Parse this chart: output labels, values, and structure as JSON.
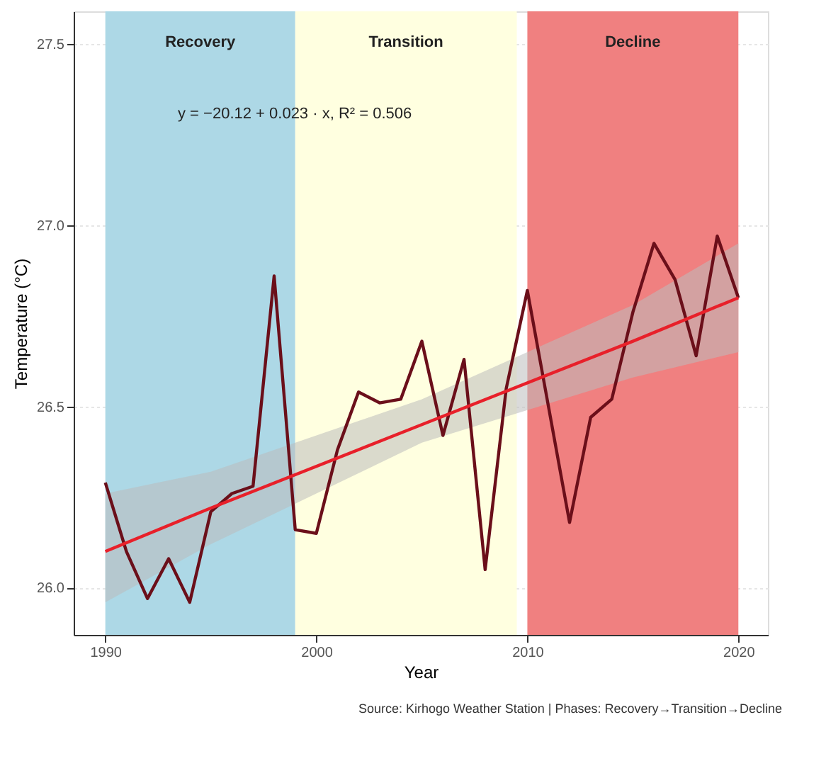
{
  "chart_data": {
    "type": "line",
    "xlabel": "Year",
    "ylabel": "Temperature (°C)",
    "x": [
      1990,
      1991,
      1992,
      1993,
      1994,
      1995,
      1996,
      1997,
      1998,
      1999,
      2000,
      2001,
      2002,
      2003,
      2004,
      2005,
      2006,
      2007,
      2008,
      2009,
      2010,
      2011,
      2012,
      2013,
      2014,
      2015,
      2016,
      2017,
      2018,
      2019,
      2020
    ],
    "series": [
      {
        "color": "#6b0f1a",
        "values": [
          26.29,
          26.1,
          25.97,
          26.08,
          25.96,
          26.21,
          26.26,
          26.28,
          26.86,
          26.16,
          26.15,
          26.38,
          26.54,
          26.51,
          26.52,
          26.68,
          26.42,
          26.63,
          26.05,
          26.55,
          26.82,
          26.5,
          26.18,
          26.47,
          26.52,
          26.76,
          26.95,
          26.85,
          26.64,
          26.97,
          26.8
        ]
      },
      {
        "type": "line",
        "color": "#e8202a",
        "x": [
          1990,
          1995,
          2005,
          2015,
          2020
        ],
        "values": [
          26.1,
          26.22,
          26.45,
          26.68,
          26.8
        ],
        "lower": [
          25.96,
          26.12,
          26.4,
          26.58,
          26.65
        ],
        "upper": [
          26.26,
          26.32,
          26.52,
          26.78,
          26.95
        ]
      }
    ],
    "bands": [
      {
        "axis": "x",
        "from": 1990,
        "to": 1999,
        "label": "Recovery",
        "color": "#add8e6"
      },
      {
        "axis": "x",
        "from": 1999,
        "to": 2009.5,
        "label": "Transition",
        "color": "#ffffe0"
      },
      {
        "axis": "x",
        "from": 2010,
        "to": 2020,
        "label": "Decline",
        "color": "#f08080"
      }
    ],
    "annotations": [
      "y = −20.12 + 0.023 · x,  R² = 0.506",
      "Source: Kirhogo Weather Station | Phases: Recovery→Transition→Decline"
    ],
    "xlim": [
      1988.5,
      2021.4
    ],
    "xticks": [
      1990,
      2000,
      2010,
      2020
    ],
    "ylim": [
      25.87,
      27.59
    ],
    "yticks": [
      {
        "value": 26,
        "label": "26.0"
      },
      {
        "value": 26.5,
        "label": "26.5"
      },
      {
        "value": 27,
        "label": "27.0"
      },
      {
        "value": 27.5,
        "label": "27.5"
      }
    ],
    "grid": "y",
    "line_style": "solid"
  }
}
